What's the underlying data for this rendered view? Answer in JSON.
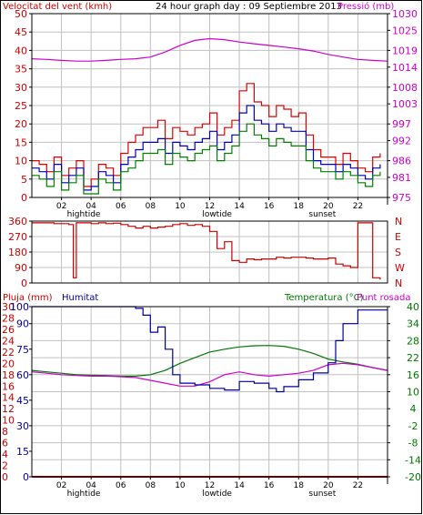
{
  "header": {
    "title": "24 hour graph day : 09 Septiembre 2013",
    "wind_speed_label": "Velocitat del vent (kmh)",
    "pressure_label": "Pressió (mb)"
  },
  "panel_labels": {
    "rain": "Pluja (mm)",
    "humidity": "Humitat",
    "temperature": "Temperatura (°C)",
    "dewpoint": "Punt rosada"
  },
  "colors": {
    "frame": "#000000",
    "grid": "#c0c0c0",
    "wind_speed_axis": "#cc0000",
    "wind_gust": "#e00000",
    "wind_avg": "#0000c0",
    "wind_min": "#008000",
    "pressure": "#cc00cc",
    "direction": "#cc0000",
    "rain_axis": "#cc0000",
    "humidity": "#000099",
    "temperature": "#007700",
    "dewpoint": "#cc00cc"
  },
  "chart_data": [
    {
      "type": "line",
      "name": "wind-and-pressure",
      "title": "24 hour graph day : 09 Septiembre 2013",
      "xlabel": "",
      "x_tick_labels": [
        "02",
        "04",
        "06",
        "08",
        "10",
        "12",
        "14",
        "16",
        "18",
        "20",
        "22"
      ],
      "x_tick_hours": [
        2,
        4,
        6,
        8,
        10,
        12,
        14,
        16,
        18,
        20,
        22
      ],
      "xlim": [
        0,
        24
      ],
      "x_markers": [
        {
          "label": "hightide",
          "hour": 3.5
        },
        {
          "label": "lowtide",
          "hour": 12.5
        },
        {
          "label": "sunset",
          "hour": 19.6
        }
      ],
      "grid": true,
      "y_left": {
        "label": "Velocitat del vent (kmh)",
        "ylim": [
          0,
          50
        ],
        "ticks": [
          0,
          5,
          10,
          15,
          20,
          25,
          30,
          35,
          40,
          45,
          50
        ]
      },
      "y_right": {
        "label": "Pressió (mb)",
        "ticks": [
          975,
          981,
          986,
          992,
          997,
          1003,
          1008,
          1014,
          1019,
          1025,
          1030
        ],
        "ylim": [
          975,
          1030
        ]
      },
      "series": [
        {
          "axis": "left",
          "role": "gust",
          "x": [
            0,
            0.5,
            1,
            1.5,
            2,
            2.5,
            3,
            3.5,
            4,
            4.5,
            5,
            5.5,
            6,
            6.5,
            7,
            7.5,
            8,
            8.5,
            9,
            9.5,
            10,
            10.5,
            11,
            11.5,
            12,
            12.5,
            13,
            13.5,
            14,
            14.5,
            15,
            15.5,
            16,
            16.5,
            17,
            17.5,
            18,
            18.5,
            19,
            19.5,
            20,
            20.5,
            21,
            21.5,
            22,
            22.5,
            23,
            23.5
          ],
          "values": [
            10,
            9,
            7,
            11,
            6,
            8,
            10,
            3,
            5,
            9,
            8,
            6,
            12,
            15,
            17,
            19,
            19,
            21,
            16,
            19,
            18,
            17,
            19,
            20,
            23,
            17,
            19,
            21,
            29,
            31,
            26,
            25,
            22,
            25,
            24,
            22,
            23,
            17,
            13,
            11,
            11,
            9,
            12,
            10,
            8,
            7,
            11,
            12
          ]
        },
        {
          "axis": "left",
          "role": "average",
          "x": [
            0,
            0.5,
            1,
            1.5,
            2,
            2.5,
            3,
            3.5,
            4,
            4.5,
            5,
            5.5,
            6,
            6.5,
            7,
            7.5,
            8,
            8.5,
            9,
            9.5,
            10,
            10.5,
            11,
            11.5,
            12,
            12.5,
            13,
            13.5,
            14,
            14.5,
            15,
            15.5,
            16,
            16.5,
            17,
            17.5,
            18,
            18.5,
            19,
            19.5,
            20,
            20.5,
            21,
            21.5,
            22,
            22.5,
            23,
            23.5
          ],
          "values": [
            8,
            7,
            5,
            9,
            4,
            6,
            8,
            2,
            3,
            7,
            6,
            4,
            9,
            11,
            13,
            15,
            15,
            16,
            12,
            15,
            14,
            13,
            15,
            16,
            18,
            13,
            15,
            17,
            23,
            25,
            21,
            20,
            18,
            20,
            19,
            18,
            18,
            13,
            10,
            9,
            9,
            7,
            9,
            8,
            6,
            5,
            8,
            9
          ]
        },
        {
          "axis": "left",
          "role": "minimum",
          "x": [
            0,
            0.5,
            1,
            1.5,
            2,
            2.5,
            3,
            3.5,
            4,
            4.5,
            5,
            5.5,
            6,
            6.5,
            7,
            7.5,
            8,
            8.5,
            9,
            9.5,
            10,
            10.5,
            11,
            11.5,
            12,
            12.5,
            13,
            13.5,
            14,
            14.5,
            15,
            15.5,
            16,
            16.5,
            17,
            17.5,
            18,
            18.5,
            19,
            19.5,
            20,
            20.5,
            21,
            21.5,
            22,
            22.5,
            23,
            23.5
          ],
          "values": [
            6,
            5,
            3,
            7,
            2,
            4,
            6,
            1,
            1,
            5,
            4,
            2,
            7,
            8,
            10,
            12,
            12,
            13,
            9,
            12,
            11,
            10,
            12,
            13,
            14,
            10,
            12,
            14,
            18,
            20,
            17,
            16,
            14,
            16,
            15,
            14,
            14,
            10,
            8,
            7,
            7,
            5,
            7,
            6,
            4,
            3,
            6,
            7
          ]
        },
        {
          "axis": "right",
          "role": "pressure",
          "x": [
            0,
            1,
            2,
            3,
            4,
            5,
            6,
            7,
            8,
            9,
            10,
            11,
            12,
            13,
            14,
            15,
            16,
            17,
            18,
            19,
            20,
            21,
            22,
            23,
            24
          ],
          "values": [
            1016.5,
            1016.3,
            1016.0,
            1015.8,
            1015.8,
            1016.0,
            1016.3,
            1016.5,
            1017.0,
            1018.5,
            1020.5,
            1022.0,
            1022.5,
            1022.2,
            1021.5,
            1021.0,
            1020.5,
            1020.0,
            1019.5,
            1018.8,
            1017.8,
            1017.0,
            1016.3,
            1016.0,
            1015.8
          ]
        }
      ]
    },
    {
      "type": "line",
      "name": "wind-direction",
      "xlim": [
        0,
        24
      ],
      "grid": true,
      "y_left": {
        "ticks": [
          0,
          90,
          180,
          270,
          360
        ],
        "ylim": [
          0,
          360
        ]
      },
      "y_right": {
        "tick_labels": [
          "N",
          "E",
          "S",
          "W",
          "N"
        ]
      },
      "series": [
        {
          "role": "direction",
          "x": [
            0,
            0.5,
            1,
            1.5,
            2,
            2.5,
            2.8,
            2.9,
            3.0,
            3.5,
            4,
            4.5,
            5,
            5.5,
            6,
            6.5,
            7,
            7.5,
            8,
            8.5,
            9,
            9.5,
            10,
            10.5,
            11,
            11.5,
            12,
            12.5,
            13,
            13.5,
            14,
            14.5,
            15,
            15.5,
            16,
            16.5,
            17,
            17.5,
            18,
            18.5,
            19,
            19.5,
            20,
            20.5,
            21,
            21.5,
            22,
            22.5,
            23,
            23.5
          ],
          "values": [
            350,
            350,
            350,
            345,
            345,
            340,
            30,
            30,
            350,
            350,
            345,
            350,
            345,
            348,
            340,
            330,
            320,
            330,
            320,
            325,
            330,
            340,
            345,
            335,
            340,
            330,
            300,
            200,
            240,
            130,
            120,
            140,
            135,
            140,
            140,
            150,
            145,
            150,
            150,
            145,
            140,
            140,
            145,
            110,
            100,
            90,
            350,
            350,
            30,
            20
          ]
        }
      ]
    },
    {
      "type": "line",
      "name": "humidity-temperature",
      "xlim": [
        0,
        24
      ],
      "x_tick_labels": [
        "02",
        "04",
        "06",
        "08",
        "10",
        "12",
        "14",
        "16",
        "18",
        "20",
        "22"
      ],
      "x_tick_hours": [
        2,
        4,
        6,
        8,
        10,
        12,
        14,
        16,
        18,
        20,
        22
      ],
      "x_markers": [
        {
          "label": "hightide",
          "hour": 3.5
        },
        {
          "label": "lowtide",
          "hour": 12.5
        },
        {
          "label": "sunset",
          "hour": 19.6
        }
      ],
      "grid": true,
      "y_left_rain": {
        "label": "Pluja (mm)",
        "ticks": [
          0,
          2,
          4,
          6,
          8,
          10,
          12,
          14,
          16,
          18,
          20,
          22,
          24,
          26,
          28,
          30
        ],
        "ylim": [
          0,
          30
        ]
      },
      "y_left_humidity": {
        "label": "Humitat",
        "ticks": [
          0,
          15,
          30,
          45,
          60,
          75,
          90,
          100
        ],
        "ylim": [
          0,
          100
        ]
      },
      "y_right": {
        "label": "Temperatura (°C)",
        "ticks": [
          -20,
          -14,
          -8,
          -2,
          4,
          10,
          16,
          22,
          28,
          34,
          40
        ],
        "ylim": [
          -20,
          40
        ]
      },
      "series": [
        {
          "axis": "right",
          "role": "temperature",
          "name": "Temperatura (°C)",
          "x": [
            0,
            1,
            2,
            3,
            4,
            5,
            6,
            7,
            8,
            9,
            10,
            11,
            12,
            13,
            14,
            15,
            16,
            17,
            18,
            19,
            20,
            21,
            22,
            23,
            24
          ],
          "values": [
            17.5,
            17.0,
            16.5,
            16.0,
            15.8,
            15.7,
            15.5,
            15.5,
            16.0,
            17.5,
            20.0,
            22.0,
            24.0,
            25.0,
            25.8,
            26.2,
            26.3,
            26.0,
            25.0,
            23.5,
            21.5,
            20.5,
            19.7,
            18.5,
            17.5
          ]
        },
        {
          "axis": "right",
          "role": "dewpoint",
          "name": "Punt rosada",
          "x": [
            0,
            1,
            2,
            3,
            4,
            5,
            6,
            7,
            8,
            9,
            10,
            11,
            12,
            13,
            14,
            15,
            16,
            17,
            18,
            19,
            20,
            21,
            22,
            23,
            24
          ],
          "values": [
            17.0,
            16.5,
            16.0,
            15.7,
            15.5,
            15.5,
            15.3,
            15.0,
            14.0,
            13.0,
            12.0,
            12.0,
            13.5,
            16.0,
            17.0,
            16.0,
            15.5,
            16.0,
            16.5,
            17.5,
            19.5,
            20.0,
            19.5,
            18.5,
            17.5
          ]
        },
        {
          "axis": "left_humidity",
          "role": "humidity",
          "name": "Humitat",
          "x": [
            0,
            1,
            2,
            3,
            4,
            5,
            6,
            7,
            7.5,
            8,
            8.5,
            9,
            9.5,
            10,
            11,
            12,
            13,
            14,
            15,
            16,
            16.5,
            17,
            18,
            19,
            20,
            20.5,
            21,
            22,
            23,
            24
          ],
          "values": [
            100,
            100,
            100,
            100,
            100,
            100,
            100,
            99,
            95,
            85,
            88,
            75,
            60,
            55,
            54,
            52,
            51,
            56,
            55,
            52,
            50,
            53,
            57,
            61,
            67,
            80,
            90,
            98,
            98,
            98
          ]
        },
        {
          "axis": "left_rain",
          "role": "rain",
          "name": "Pluja (mm)",
          "x": [
            0,
            24
          ],
          "values": [
            0,
            0
          ]
        }
      ]
    }
  ]
}
